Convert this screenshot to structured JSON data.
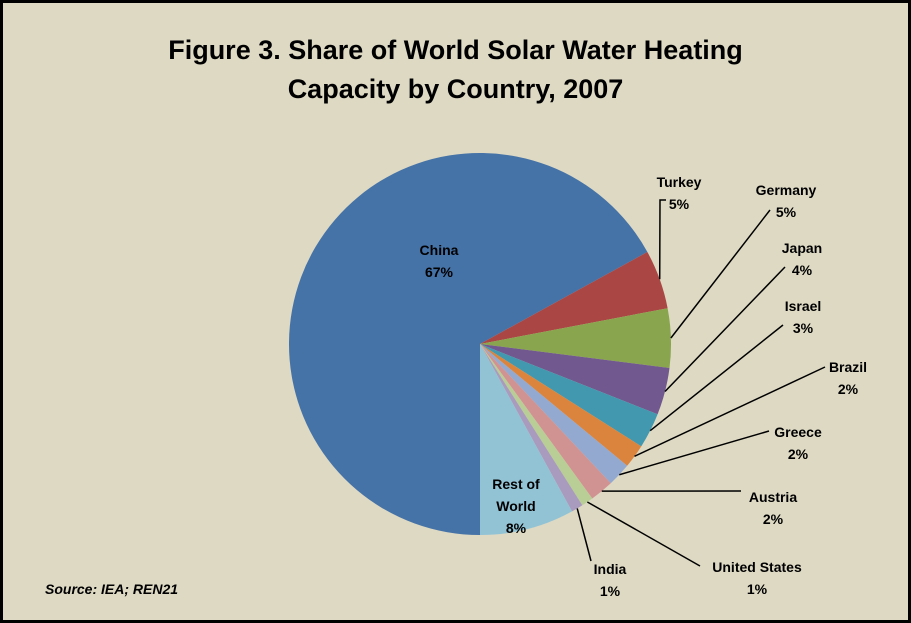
{
  "chart_data": {
    "type": "pie",
    "title": "Figure 3. Share of World Solar Water Heating Capacity by Country, 2007",
    "title_lines": [
      "Figure 3. Share of World Solar Water Heating",
      "Capacity by Country, 2007"
    ],
    "source": "Source: IEA; REN21",
    "start": "bottom",
    "direction": "clockwise",
    "slices": [
      {
        "label": "China",
        "label_lines": [
          "China"
        ],
        "value": 67,
        "text": "67%",
        "color": "#4572A7"
      },
      {
        "label": "Turkey",
        "label_lines": [
          "Turkey"
        ],
        "value": 5,
        "text": "5%",
        "color": "#AA4643"
      },
      {
        "label": "Germany",
        "label_lines": [
          "Germany"
        ],
        "value": 5,
        "text": "5%",
        "color": "#89A54E"
      },
      {
        "label": "Japan",
        "label_lines": [
          "Japan"
        ],
        "value": 4,
        "text": "4%",
        "color": "#71588F"
      },
      {
        "label": "Israel",
        "label_lines": [
          "Israel"
        ],
        "value": 3,
        "text": "3%",
        "color": "#4198AF"
      },
      {
        "label": "Brazil",
        "label_lines": [
          "Brazil"
        ],
        "value": 2,
        "text": "2%",
        "color": "#DB843D"
      },
      {
        "label": "Greece",
        "label_lines": [
          "Greece"
        ],
        "value": 2,
        "text": "2%",
        "color": "#93A9CF"
      },
      {
        "label": "Austria",
        "label_lines": [
          "Austria"
        ],
        "value": 2,
        "text": "2%",
        "color": "#D19392"
      },
      {
        "label": "United States",
        "label_lines": [
          "United States"
        ],
        "value": 1,
        "text": "1%",
        "color": "#B9CD96"
      },
      {
        "label": "India",
        "label_lines": [
          "India"
        ],
        "value": 1,
        "text": "1%",
        "color": "#A99BBD"
      },
      {
        "label": "Rest of World",
        "label_lines": [
          "Rest of",
          "World"
        ],
        "value": 8,
        "text": "8%",
        "color": "#92C3D5"
      }
    ]
  }
}
